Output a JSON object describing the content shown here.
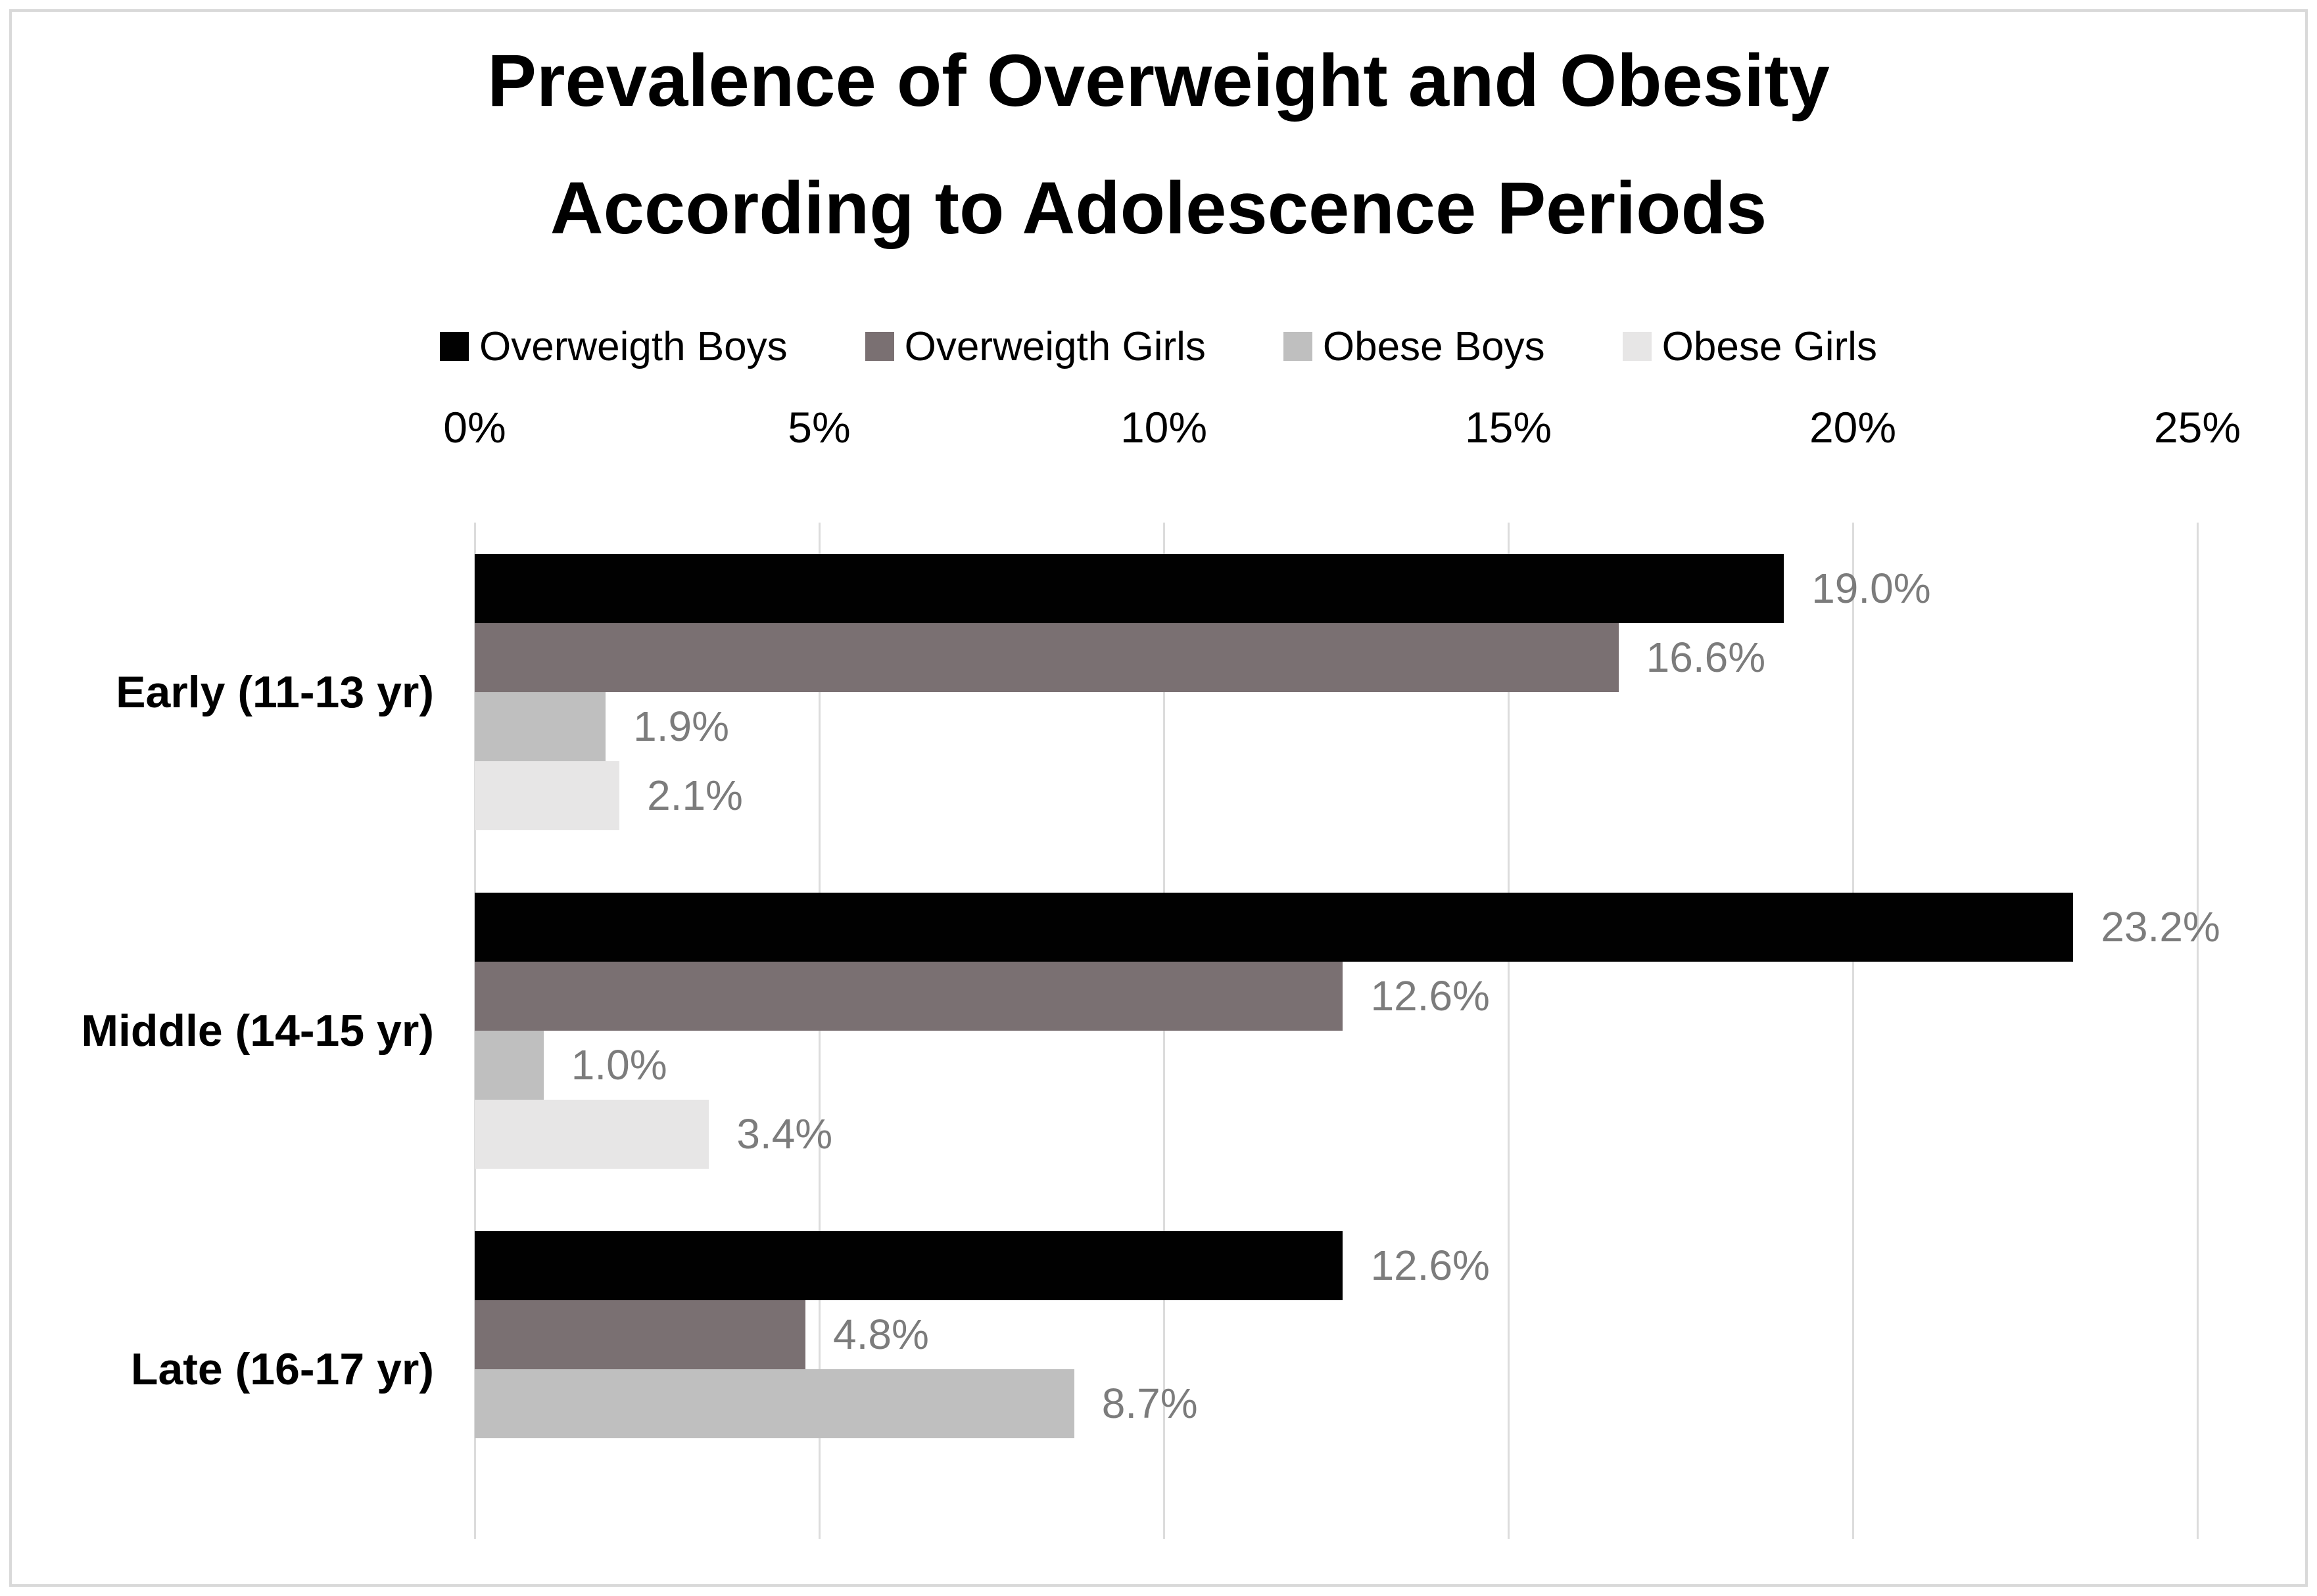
{
  "title": {
    "line1": "Prevalence of Overweight and Obesity",
    "line2": "According to Adolescence Periods"
  },
  "chart_data": {
    "type": "bar",
    "orientation": "horizontal",
    "title": "Prevalence of Overweight and Obesity According to Adolescence Periods",
    "categories": [
      "Early (11-13 yr)",
      "Middle (14-15 yr)",
      "Late (16-17 yr)"
    ],
    "series": [
      {
        "name": "Overweigth Boys",
        "color": "#010101",
        "values": [
          19.0,
          23.2,
          12.6
        ],
        "labels": [
          "19.0%",
          "23.2%",
          "12.6%"
        ]
      },
      {
        "name": "Overweigth Girls",
        "color": "#7a7072",
        "values": [
          16.6,
          12.6,
          4.8
        ],
        "labels": [
          "16.6%",
          "12.6%",
          "4.8%"
        ]
      },
      {
        "name": "Obese Boys",
        "color": "#bfbfbf",
        "values": [
          1.9,
          1.0,
          8.7
        ],
        "labels": [
          "1.9%",
          "1.0%",
          "8.7%"
        ]
      },
      {
        "name": "Obese Girls",
        "color": "#e7e6e6",
        "values": [
          2.1,
          3.4,
          null
        ],
        "labels": [
          "2.1%",
          "3.4%",
          null
        ]
      }
    ],
    "x_axis": {
      "min": 0,
      "max": 25,
      "ticks": [
        "0%",
        "5%",
        "10%",
        "15%",
        "20%",
        "25%"
      ],
      "grid": true
    },
    "legend_position": "top",
    "data_label_position": "outside-end",
    "colors": {
      "gridline": "#dcdcdc",
      "chart_border": "#d9d9d9",
      "data_label": "#7c7c7c",
      "text": "#000000",
      "background": "#ffffff"
    }
  }
}
